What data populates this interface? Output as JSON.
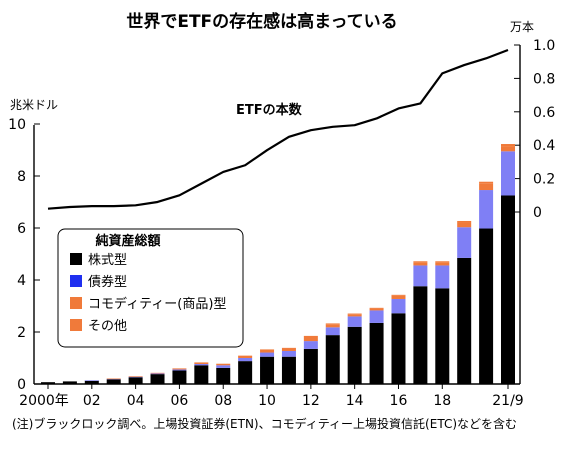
{
  "chart_data": {
    "type": "bar",
    "title": "世界でETFの存在感は高まっている",
    "left_axis_unit": "兆米ドル",
    "right_axis_unit": "万本",
    "ylim_left": [
      0,
      10
    ],
    "ylim_right": [
      0,
      1.0
    ],
    "left_ticks": [
      "0",
      "2",
      "4",
      "6",
      "8",
      "10"
    ],
    "right_ticks": [
      "0",
      "0.2",
      "0.4",
      "0.6",
      "0.8",
      "1.0"
    ],
    "x_tick_labels": [
      "2000年",
      "02",
      "04",
      "06",
      "08",
      "10",
      "12",
      "14",
      "16",
      "18",
      "21/9"
    ],
    "grid": false,
    "legend": {
      "title": "純資産総額",
      "placement": "left",
      "items": [
        {
          "label": "株式型",
          "color": "#000000"
        },
        {
          "label": "債券型",
          "color": "#1f2ff0"
        },
        {
          "label": "コモディティー(商品)型",
          "color": "#f07a3a"
        },
        {
          "label": "その他",
          "color": "#f07a3a"
        }
      ]
    },
    "categories": [
      "2000",
      "2001",
      "2002",
      "2003",
      "2004",
      "2005",
      "2006",
      "2007",
      "2008",
      "2009",
      "2010",
      "2011",
      "2012",
      "2013",
      "2014",
      "2015",
      "2016",
      "2017",
      "2018",
      "2019",
      "2020",
      "21/9"
    ],
    "series": [
      {
        "name": "株式型",
        "color": "#000000",
        "values": [
          0.07,
          0.1,
          0.13,
          0.18,
          0.26,
          0.38,
          0.52,
          0.72,
          0.62,
          0.88,
          1.05,
          1.05,
          1.35,
          1.88,
          2.2,
          2.35,
          2.72,
          3.76,
          3.68,
          4.85,
          5.98,
          7.25
        ]
      },
      {
        "name": "債券型",
        "color": "#7f7ff5",
        "values": [
          0.0,
          0.0,
          0.01,
          0.02,
          0.02,
          0.03,
          0.04,
          0.05,
          0.1,
          0.12,
          0.16,
          0.22,
          0.3,
          0.3,
          0.4,
          0.48,
          0.55,
          0.8,
          0.88,
          1.18,
          1.48,
          1.7
        ]
      },
      {
        "name": "コモディティー(商品)型",
        "color": "#f07a3a",
        "values": [
          0.0,
          0.0,
          0.0,
          0.01,
          0.02,
          0.02,
          0.04,
          0.06,
          0.06,
          0.08,
          0.11,
          0.1,
          0.18,
          0.12,
          0.08,
          0.07,
          0.12,
          0.12,
          0.12,
          0.18,
          0.24,
          0.2
        ]
      },
      {
        "name": "その他",
        "color": "#f07a3a",
        "values": [
          0.0,
          0.0,
          0.0,
          0.0,
          0.0,
          0.0,
          0.0,
          0.0,
          0.0,
          0.01,
          0.01,
          0.02,
          0.02,
          0.03,
          0.03,
          0.03,
          0.04,
          0.04,
          0.04,
          0.06,
          0.08,
          0.08
        ]
      }
    ],
    "line_series": {
      "name": "ETFの本数",
      "axis": "right",
      "color": "#000000",
      "values": [
        0.02,
        0.03,
        0.035,
        0.035,
        0.04,
        0.06,
        0.1,
        0.17,
        0.24,
        0.28,
        0.37,
        0.45,
        0.49,
        0.51,
        0.52,
        0.56,
        0.62,
        0.65,
        0.83,
        0.88,
        0.92,
        0.97
      ]
    },
    "note": "(注)ブラックロック調べ。上場投資証券(ETN)、コモディティー上場投資信託(ETC)などを含む"
  }
}
